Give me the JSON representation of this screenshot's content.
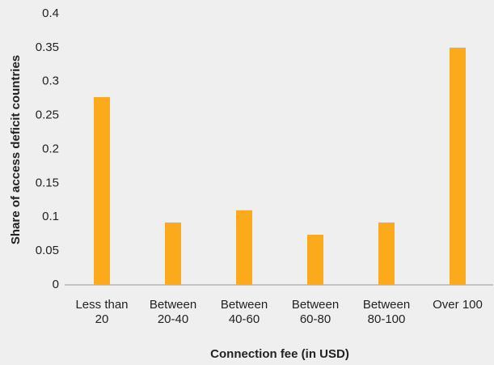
{
  "chart_data": {
    "type": "bar",
    "categories": [
      "Less than 20",
      "Between 20-40",
      "Between 40-60",
      "Between 60-80",
      "Between 80-100",
      "Over 100"
    ],
    "values": [
      0.277,
      0.092,
      0.11,
      0.074,
      0.092,
      0.35
    ],
    "color": "#fbaa1c",
    "ylim": [
      0,
      0.4
    ],
    "yticks": [
      0,
      0.05,
      0.1,
      0.15,
      0.2,
      0.25,
      0.3,
      0.35,
      0.4
    ],
    "y_label": "Share of access deficit countries",
    "x_label": "Connection fee (in USD)"
  }
}
